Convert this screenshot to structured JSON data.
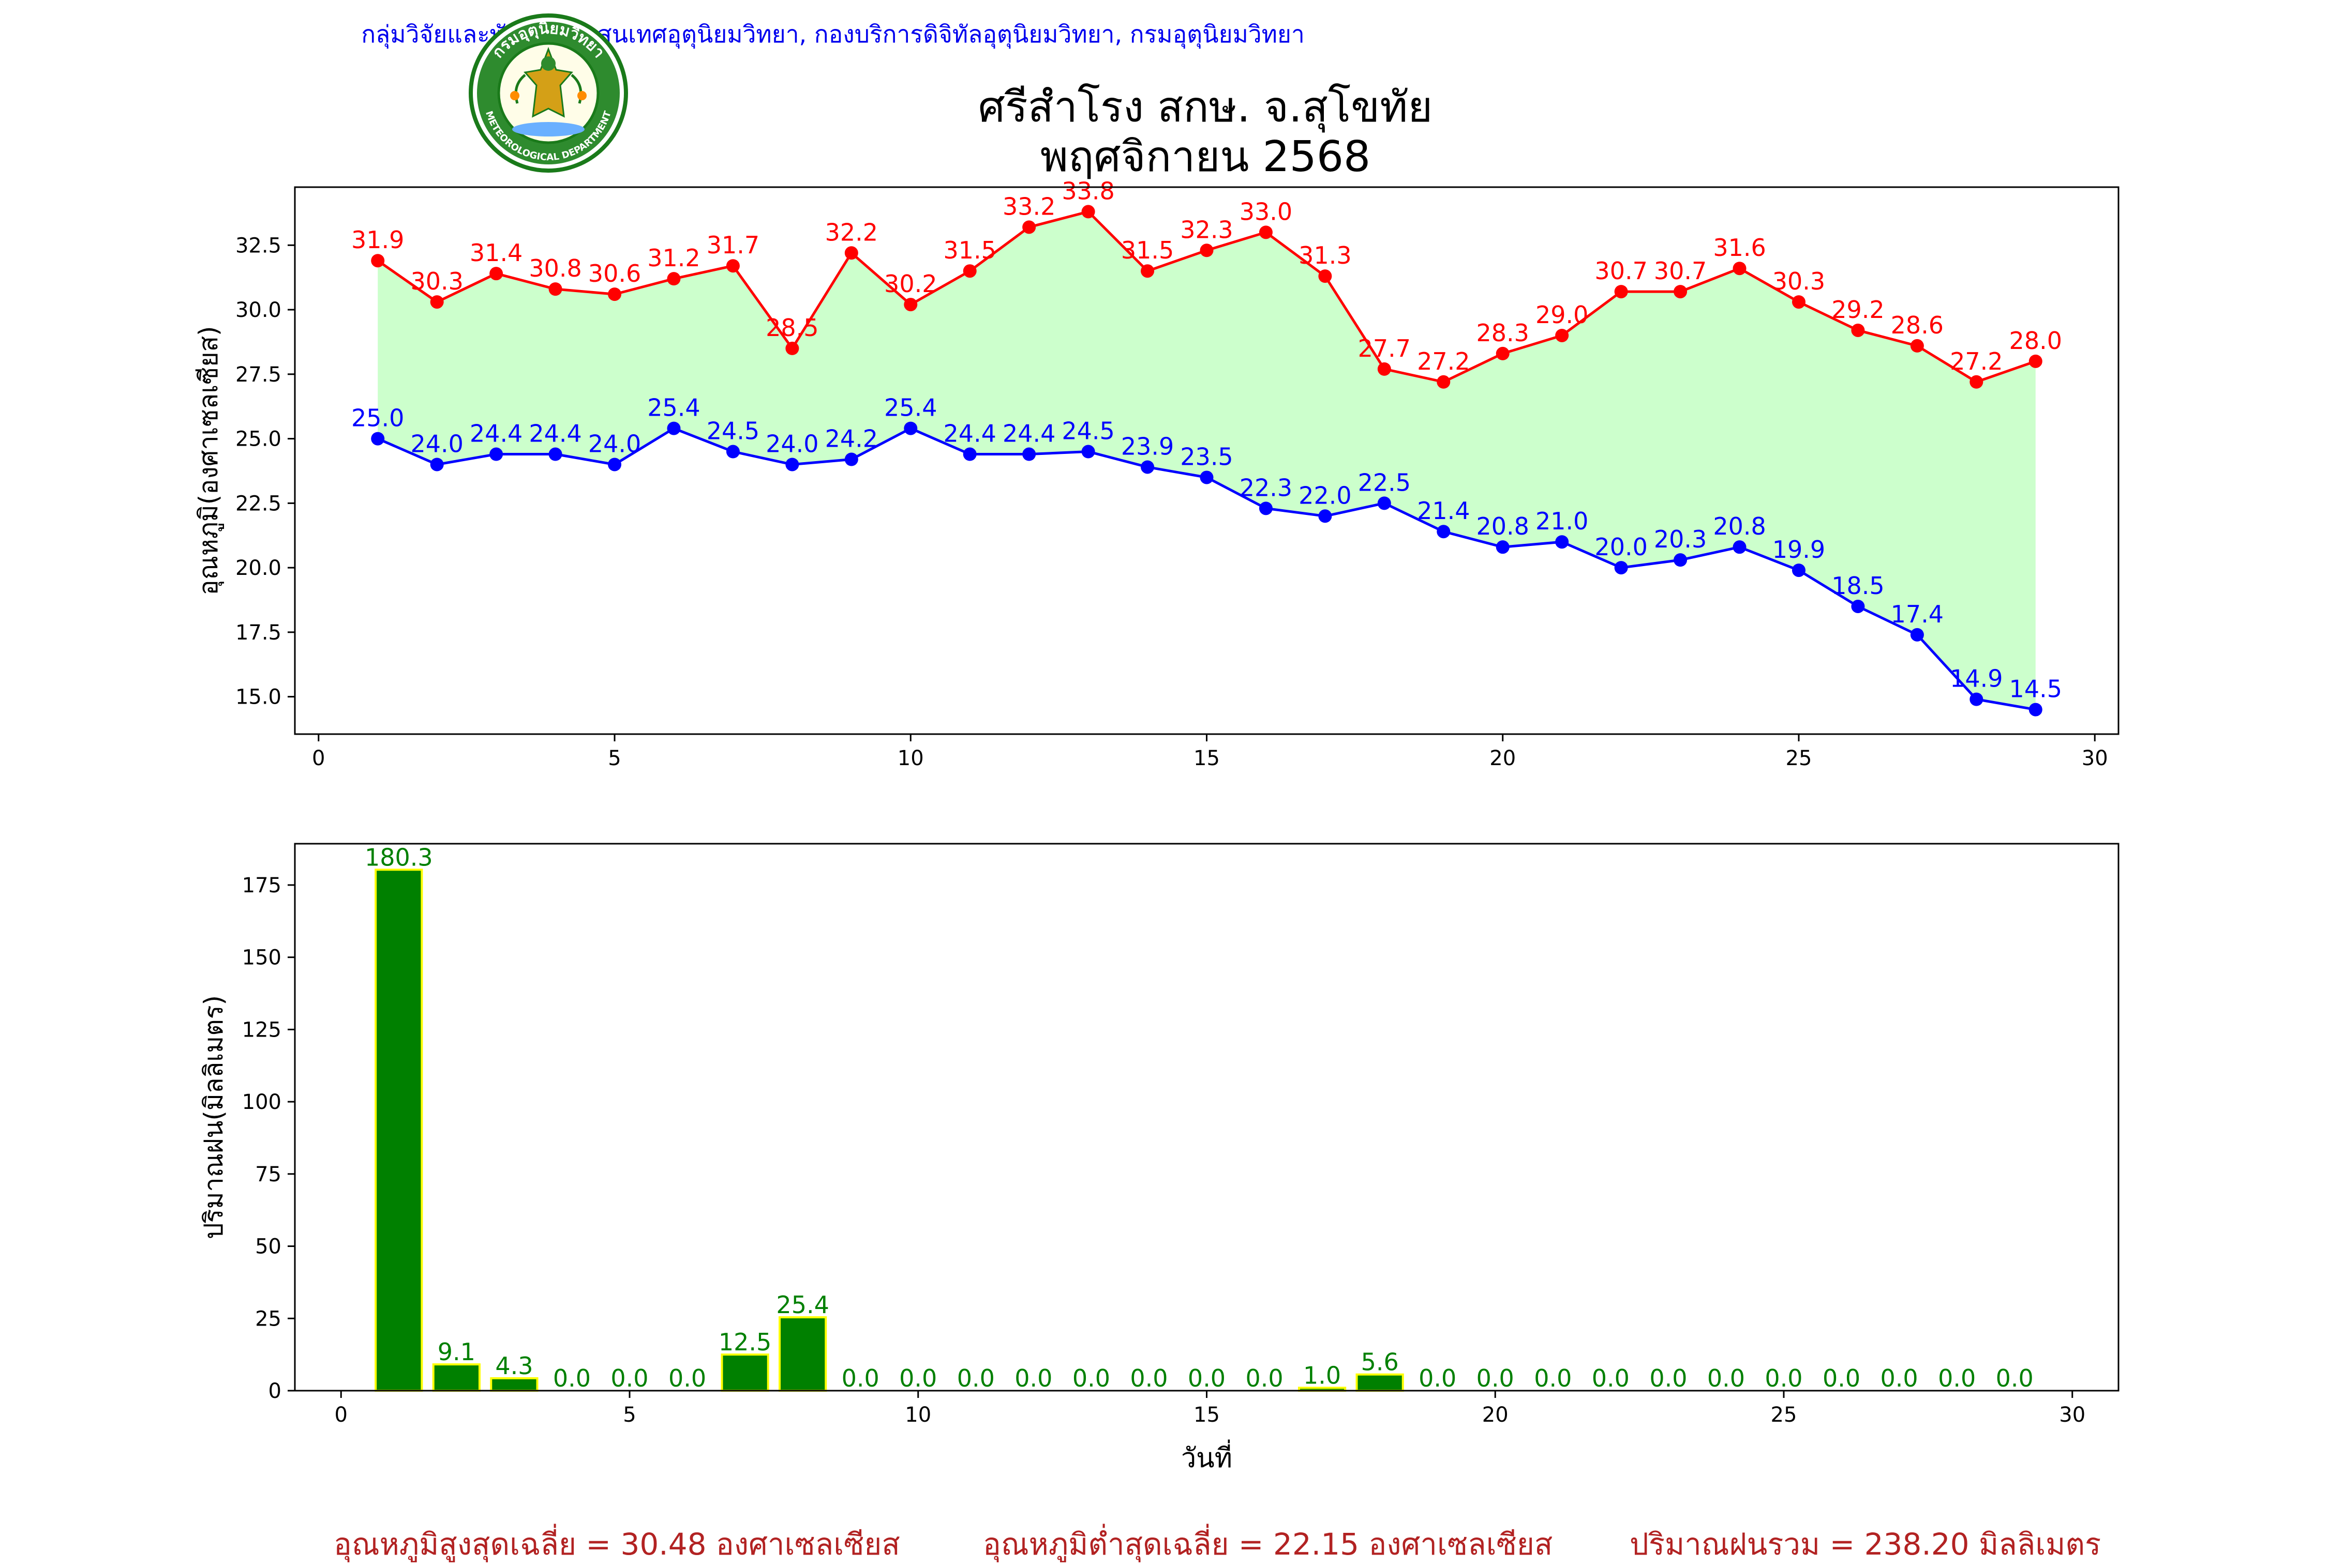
{
  "header": {
    "credit": "กลุ่มวิจัยและพัฒนาสารสนเทศอุตุนิยมวิทยา, กองบริการดิจิทัลอุตุนิยมวิทยา, กรมอุตุนิยมวิทยา",
    "title_line1": "ศรีสำโรง สกษ. จ.สุโขทัย",
    "title_line2": "พฤศจิกายน 2568",
    "logo": {
      "icon": "meteorological-department-seal-icon",
      "text_top": "กรมอุตุนิยมวิทยา",
      "text_bottom": "METEOROLOGICAL DEPARTMENT"
    }
  },
  "chart_data": [
    {
      "type": "line",
      "ylabel": "อุณหภูมิ(องศาเซลเซียส)",
      "xlabel": "",
      "xlim": [
        -0.4,
        30.4
      ],
      "ylim": [
        13.55,
        34.75
      ],
      "xticks": [
        0,
        5,
        10,
        15,
        20,
        25,
        30
      ],
      "yticks": [
        15.0,
        17.5,
        20.0,
        22.5,
        25.0,
        27.5,
        30.0,
        32.5
      ],
      "grid": false,
      "fill_between_color": "#ccffcc",
      "x": [
        1,
        2,
        3,
        4,
        5,
        6,
        7,
        8,
        9,
        10,
        11,
        12,
        13,
        14,
        15,
        16,
        17,
        18,
        19,
        20,
        21,
        22,
        23,
        24,
        25,
        26,
        27,
        28,
        29
      ],
      "series": [
        {
          "role": "max",
          "color": "#ff0000",
          "values": [
            31.9,
            30.3,
            31.4,
            30.8,
            30.6,
            31.2,
            31.7,
            28.5,
            32.2,
            30.2,
            31.5,
            33.2,
            33.8,
            31.5,
            32.3,
            33.0,
            31.3,
            27.7,
            27.2,
            28.3,
            29.0,
            30.7,
            30.7,
            31.6,
            30.3,
            29.2,
            28.6,
            27.2,
            28.0
          ]
        },
        {
          "role": "min",
          "color": "#0000ff",
          "values": [
            25.0,
            24.0,
            24.4,
            24.4,
            24.0,
            25.4,
            24.5,
            24.0,
            24.2,
            25.4,
            24.4,
            24.4,
            24.5,
            23.9,
            23.5,
            22.3,
            22.0,
            22.5,
            21.4,
            20.8,
            21.0,
            20.0,
            20.3,
            20.8,
            19.9,
            18.5,
            17.4,
            14.9,
            14.5
          ]
        }
      ]
    },
    {
      "type": "bar",
      "ylabel": "ปริมาณฝน(มิลลิเมตร)",
      "xlabel": "วันที่",
      "xlim": [
        -0.8,
        30.8
      ],
      "ylim": [
        0,
        189.3
      ],
      "xticks": [
        0,
        5,
        10,
        15,
        20,
        25,
        30
      ],
      "yticks": [
        0,
        25,
        50,
        75,
        100,
        125,
        150,
        175
      ],
      "grid": false,
      "bar_color": "#008000",
      "bar_edge_color": "#ffff00",
      "label_color": "#008000",
      "categories": [
        1,
        2,
        3,
        4,
        5,
        6,
        7,
        8,
        9,
        10,
        11,
        12,
        13,
        14,
        15,
        16,
        17,
        18,
        19,
        20,
        21,
        22,
        23,
        24,
        25,
        26,
        27,
        28,
        29
      ],
      "values": [
        180.3,
        9.1,
        4.3,
        0.0,
        0.0,
        0.0,
        12.5,
        25.4,
        0.0,
        0.0,
        0.0,
        0.0,
        0.0,
        0.0,
        0.0,
        0.0,
        1.0,
        5.6,
        0.0,
        0.0,
        0.0,
        0.0,
        0.0,
        0.0,
        0.0,
        0.0,
        0.0,
        0.0,
        0.0
      ]
    }
  ],
  "footer": {
    "avg_max": "อุณหภูมิสูงสุดเฉลี่ย = 30.48 องศาเซลเซียส",
    "avg_min": "อุณหภูมิต่ำสุดเฉลี่ย = 22.15 องศาเซลเซียส",
    "total_rain": "ปริมาณฝนรวม = 238.20 มิลลิเมตร"
  }
}
